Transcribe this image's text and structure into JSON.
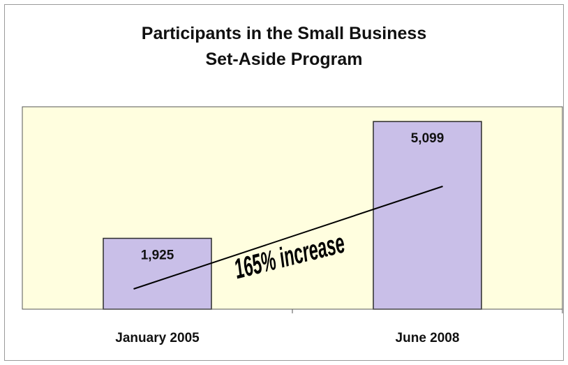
{
  "chart_data": {
    "type": "bar",
    "title_lines": [
      "Participants in the Small Business",
      "Set-Aside Program"
    ],
    "categories": [
      "January 2005",
      "June 2008"
    ],
    "values": [
      1925,
      5099
    ],
    "value_labels": [
      "1,925",
      "5,099"
    ],
    "annotation": "165% increase",
    "ylim": [
      0,
      5500
    ],
    "grid": false,
    "legend": "none",
    "colors": {
      "bar_fill": "#c9bfe8",
      "bar_stroke": "#2b2b2b",
      "plot_background": "#fffedf",
      "trend_line": "#000000"
    }
  }
}
